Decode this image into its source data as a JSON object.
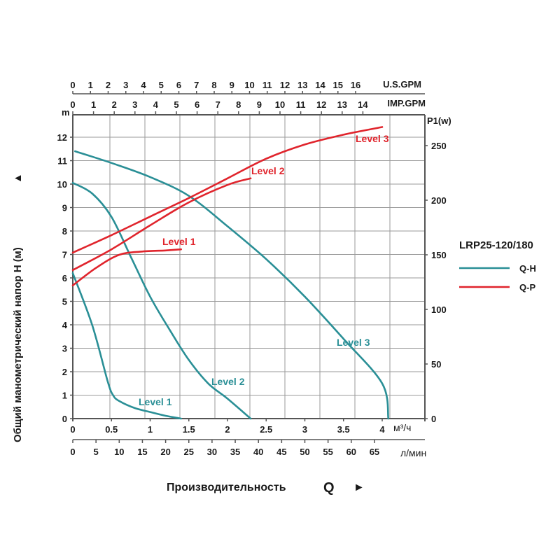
{
  "chart_data": {
    "type": "line",
    "title": "",
    "model": "LRP25-120/180",
    "colors": {
      "qh": "#2a8f96",
      "qp": "#e0242c",
      "grid": "#9a9a9a",
      "axis": "#555555"
    },
    "x_axis_primary": {
      "unit": "м³/ч",
      "range": [
        0,
        4.5
      ],
      "ticks": [
        "0",
        "0.5",
        "1",
        "1.5",
        "2",
        "2.5",
        "3",
        "3.5",
        "4"
      ],
      "tick_values": [
        0,
        0.5,
        1,
        1.5,
        2,
        2.5,
        3,
        3.5,
        4
      ]
    },
    "x_axis_lpm": {
      "unit": "л/мин",
      "ticks": [
        "0",
        "5",
        "10",
        "15",
        "20",
        "25",
        "30",
        "35",
        "40",
        "45",
        "50",
        "55",
        "60",
        "65"
      ],
      "tick_values": [
        0,
        5,
        10,
        15,
        20,
        25,
        30,
        35,
        40,
        45,
        50,
        55,
        60,
        65
      ]
    },
    "x_axis_usgpm": {
      "unit": "U.S.GPM",
      "ticks": [
        "0",
        "1",
        "2",
        "3",
        "4",
        "5",
        "6",
        "7",
        "8",
        "9",
        "10",
        "11",
        "12",
        "13",
        "14",
        "15",
        "16"
      ],
      "tick_values": [
        0,
        1,
        2,
        3,
        4,
        5,
        6,
        7,
        8,
        9,
        10,
        11,
        12,
        13,
        14,
        15,
        16
      ]
    },
    "x_axis_impgpm": {
      "unit": "IMP.GPM",
      "ticks": [
        "0",
        "1",
        "2",
        "3",
        "4",
        "5",
        "6",
        "7",
        "8",
        "9",
        "10",
        "11",
        "12",
        "13",
        "14"
      ],
      "tick_values": [
        0,
        1,
        2,
        3,
        4,
        5,
        6,
        7,
        8,
        9,
        10,
        11,
        12,
        13,
        14
      ]
    },
    "y_axis_left": {
      "unit": "m",
      "label": "Общий манометрический напор H (м)",
      "arrow": "▲",
      "range": [
        0,
        13
      ],
      "ticks": [
        "0",
        "1",
        "2",
        "3",
        "4",
        "5",
        "6",
        "7",
        "8",
        "9",
        "10",
        "11",
        "12"
      ],
      "tick_values": [
        0,
        1,
        2,
        3,
        4,
        5,
        6,
        7,
        8,
        9,
        10,
        11,
        12
      ]
    },
    "y_axis_right": {
      "unit": "P1(w)",
      "range": [
        0,
        275
      ],
      "ticks": [
        "0",
        "50",
        "100",
        "150",
        "200",
        "250"
      ],
      "tick_values": [
        0,
        50,
        100,
        150,
        200,
        250
      ]
    },
    "xlabel": "Производительность",
    "xlabel_symbol": "Q",
    "xlabel_arrow": "►",
    "grid": true,
    "legend": {
      "position": "right",
      "title": "LRP25-120/180",
      "entries": [
        {
          "name": "Q-H",
          "color": "#2a8f96"
        },
        {
          "name": "Q-P",
          "color": "#e0242c"
        }
      ]
    },
    "series": [
      {
        "name": "Q-H Level 3",
        "kind": "qh",
        "label": "Level 3",
        "x": [
          0.03,
          0.5,
          1.0,
          1.5,
          2.0,
          2.5,
          3.0,
          3.5,
          4.0,
          4.08
        ],
        "y": [
          11.4,
          10.9,
          10.3,
          9.5,
          8.2,
          6.8,
          5.2,
          3.4,
          1.5,
          0
        ]
      },
      {
        "name": "Q-H Level 2",
        "kind": "qh",
        "label": "Level 2",
        "x": [
          0,
          0.25,
          0.5,
          0.75,
          1.0,
          1.25,
          1.5,
          1.75,
          2.0,
          2.3
        ],
        "y": [
          10.05,
          9.6,
          8.6,
          6.9,
          5.2,
          3.8,
          2.5,
          1.5,
          0.85,
          0
        ]
      },
      {
        "name": "Q-H Level 1",
        "kind": "qh",
        "label": "Level 1",
        "x": [
          0,
          0.25,
          0.45,
          0.52,
          0.6,
          0.8,
          1.0,
          1.2,
          1.4
        ],
        "y": [
          6.2,
          4.0,
          1.6,
          1.0,
          0.75,
          0.45,
          0.28,
          0.12,
          0
        ]
      },
      {
        "name": "Q-P Level 3",
        "kind": "qp",
        "label": "Level 3",
        "x": [
          0,
          0.5,
          1.0,
          1.5,
          2.0,
          2.5,
          3.0,
          3.5,
          4.0
        ],
        "y": [
          152,
          168,
          185,
          202,
          220,
          238,
          251,
          260,
          267
        ]
      },
      {
        "name": "Q-P Level 2",
        "kind": "qp",
        "label": "Level 2",
        "x": [
          0,
          0.5,
          1.0,
          1.5,
          2.0,
          2.3
        ],
        "y": [
          136,
          155,
          177,
          198,
          214,
          220
        ]
      },
      {
        "name": "Q-P Level 1",
        "kind": "qp",
        "label": "Level 1",
        "x": [
          0,
          0.3,
          0.6,
          0.9,
          1.2,
          1.4
        ],
        "y": [
          122,
          138,
          150,
          153,
          154,
          155
        ]
      }
    ]
  }
}
